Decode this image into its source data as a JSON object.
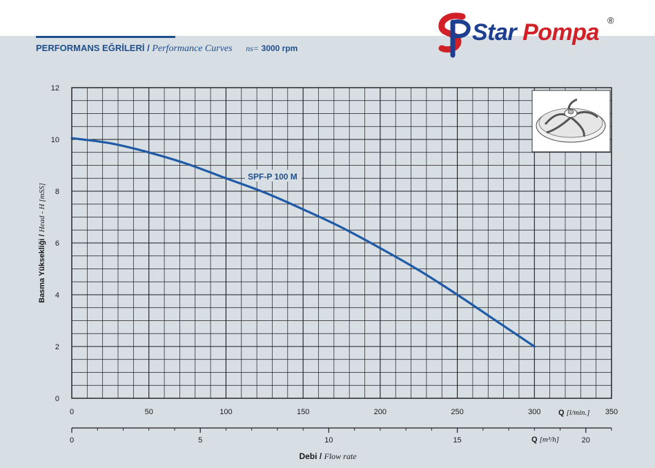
{
  "header": {
    "title_tr": "PERFORMANS EĞRİLERİ",
    "separator": "/",
    "title_en": "Performance Curves",
    "speed_label": "ns=",
    "speed_value": "3000 rpm"
  },
  "logo": {
    "word1": "Star",
    "word2": "Pompa",
    "registered": "®"
  },
  "colors": {
    "curve": "#1f5aa6",
    "grid": "#1a1a1a",
    "brand_blue": "#1e3f8f",
    "brand_red": "#d22027",
    "label_blue": "#1f4e8c"
  },
  "chart_data": {
    "type": "line",
    "grid": true,
    "y_axis": {
      "label_tr": "Basma Yüksekliği",
      "label_en": "Head - H [mSS]",
      "ylim": [
        0,
        12
      ],
      "ticks": [
        0,
        2,
        4,
        6,
        8,
        10,
        12
      ]
    },
    "x_axis": {
      "unit_symbol": "Q",
      "unit": "[l/min.]",
      "xlim": [
        0,
        350
      ],
      "ticks": [
        0,
        50,
        100,
        150,
        200,
        250,
        300,
        350
      ]
    },
    "x_axis_secondary": {
      "unit_symbol": "Q",
      "unit": "[m³/h]",
      "xlim": [
        0,
        21
      ],
      "ticks": [
        0,
        5,
        10,
        15,
        20
      ]
    },
    "xlabel_tr": "Debi",
    "xlabel_en": "Flow rate",
    "series": [
      {
        "name": "SPF-P 100 M",
        "x": [
          0,
          25,
          50,
          75,
          100,
          125,
          150,
          175,
          200,
          225,
          250,
          275,
          300
        ],
        "y": [
          10.05,
          9.85,
          9.5,
          9.05,
          8.5,
          7.95,
          7.3,
          6.6,
          5.8,
          4.95,
          4.0,
          3.0,
          2.0
        ]
      }
    ]
  }
}
